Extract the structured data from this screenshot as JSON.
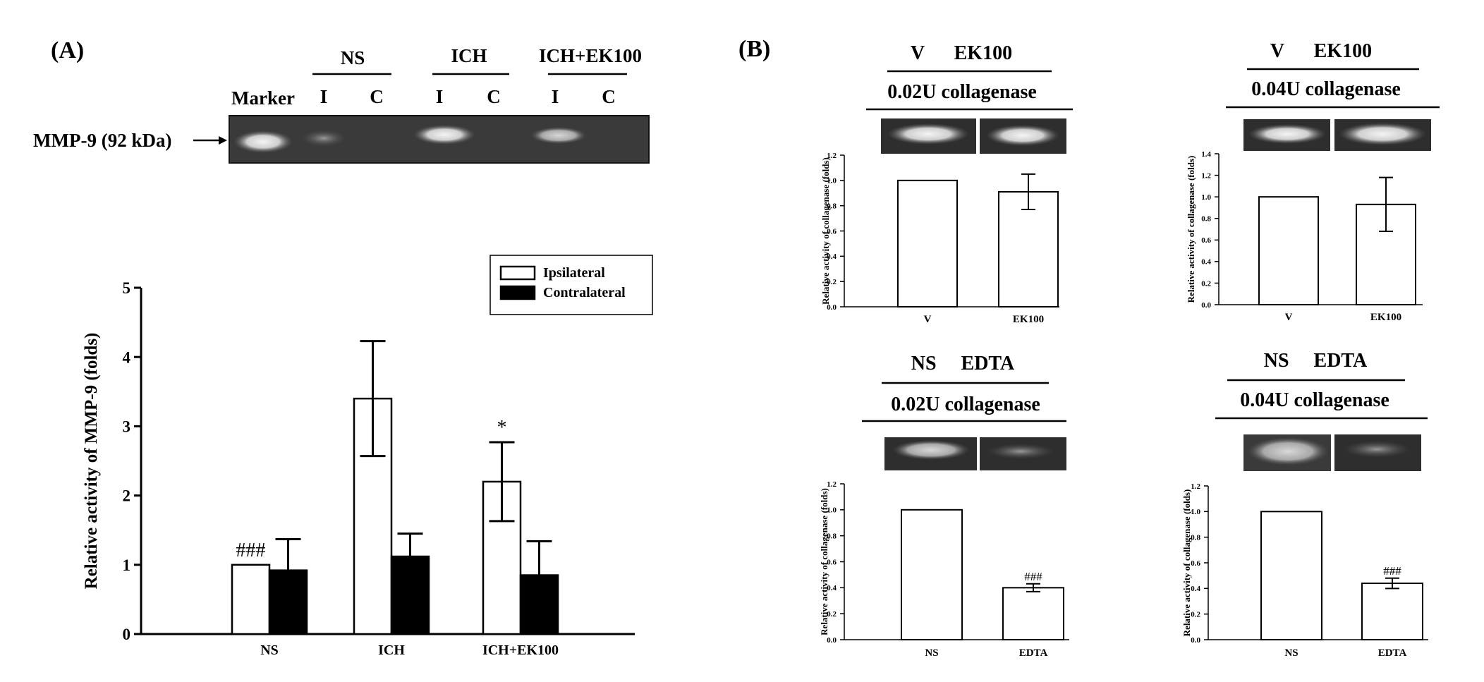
{
  "panel_labels": {
    "a": "(A)",
    "b": "(B)"
  },
  "panel_a": {
    "gel": {
      "marker_label": "Marker",
      "band_label": "MMP-9 (92 kDa)",
      "groups": [
        {
          "name": "NS",
          "lanes": [
            "I",
            "C"
          ]
        },
        {
          "name": "ICH",
          "lanes": [
            "I",
            "C"
          ]
        },
        {
          "name": "ICH+EK100",
          "lanes": [
            "I",
            "C"
          ]
        }
      ]
    }
  },
  "panel_b": [
    {
      "treatments": "V      EK100",
      "enzyme": "0.02U collagenase"
    },
    {
      "treatments": "V      EK100",
      "enzyme": "0.04U collagenase"
    },
    {
      "treatments": "NS     EDTA",
      "enzyme": "0.02U collagenase"
    },
    {
      "treatments": "NS     EDTA",
      "enzyme": "0.04U collagenase"
    }
  ],
  "chart_data": [
    {
      "type": "bar",
      "ylabel": "Relative activity of MMP-9 (folds)",
      "ylim": [
        0,
        5
      ],
      "yticks": [
        "0",
        "1",
        "2",
        "3",
        "4",
        "5"
      ],
      "categories": [
        "NS",
        "ICH",
        "ICH+EK100"
      ],
      "series": [
        {
          "name": "Ipsilateral",
          "color": "#ffffff",
          "values": [
            1.0,
            3.4,
            2.2
          ],
          "errors": [
            0,
            0.83,
            0.57
          ]
        },
        {
          "name": "Contralateral",
          "color": "#000000",
          "values": [
            0.92,
            1.12,
            0.85
          ],
          "errors": [
            0.45,
            0.33,
            0.49
          ]
        }
      ],
      "annotations": [
        "###",
        "",
        "*"
      ],
      "legend": "top-right"
    },
    {
      "type": "bar",
      "ylabel": "Relative activity of collagenase (folds)",
      "ylim": [
        0,
        1.2
      ],
      "yticks": [
        "0.0",
        "0.2",
        "0.4",
        "0.6",
        "0.8",
        "1.0",
        "1.2"
      ],
      "categories": [
        "V",
        "EK100"
      ],
      "values": [
        1.0,
        0.91
      ],
      "errors": [
        0,
        0.14
      ],
      "annotations": [
        "",
        ""
      ]
    },
    {
      "type": "bar",
      "ylabel": "Relative activity of collagenase (folds)",
      "ylim": [
        0,
        1.4
      ],
      "yticks": [
        "0.0",
        "0.2",
        "0.4",
        "0.6",
        "0.8",
        "1.0",
        "1.2",
        "1.4"
      ],
      "categories": [
        "V",
        "EK100"
      ],
      "values": [
        1.0,
        0.93
      ],
      "errors": [
        0,
        0.25
      ],
      "annotations": [
        "",
        ""
      ]
    },
    {
      "type": "bar",
      "ylabel": "Relative activity of collagenase (folds)",
      "ylim": [
        0,
        1.2
      ],
      "yticks": [
        "0.0",
        "0.2",
        "0.4",
        "0.6",
        "0.8",
        "1.0",
        "1.2"
      ],
      "categories": [
        "NS",
        "EDTA"
      ],
      "values": [
        1.0,
        0.4
      ],
      "errors": [
        0,
        0.03
      ],
      "annotations": [
        "",
        "###"
      ]
    },
    {
      "type": "bar",
      "ylabel": "Relative activity of collagenase (folds)",
      "ylim": [
        0,
        1.2
      ],
      "yticks": [
        "0.0",
        "0.2",
        "0.4",
        "0.6",
        "0.8",
        "1.0",
        "1.2"
      ],
      "categories": [
        "NS",
        "EDTA"
      ],
      "values": [
        1.0,
        0.44
      ],
      "errors": [
        0,
        0.04
      ],
      "annotations": [
        "",
        "###"
      ]
    }
  ]
}
